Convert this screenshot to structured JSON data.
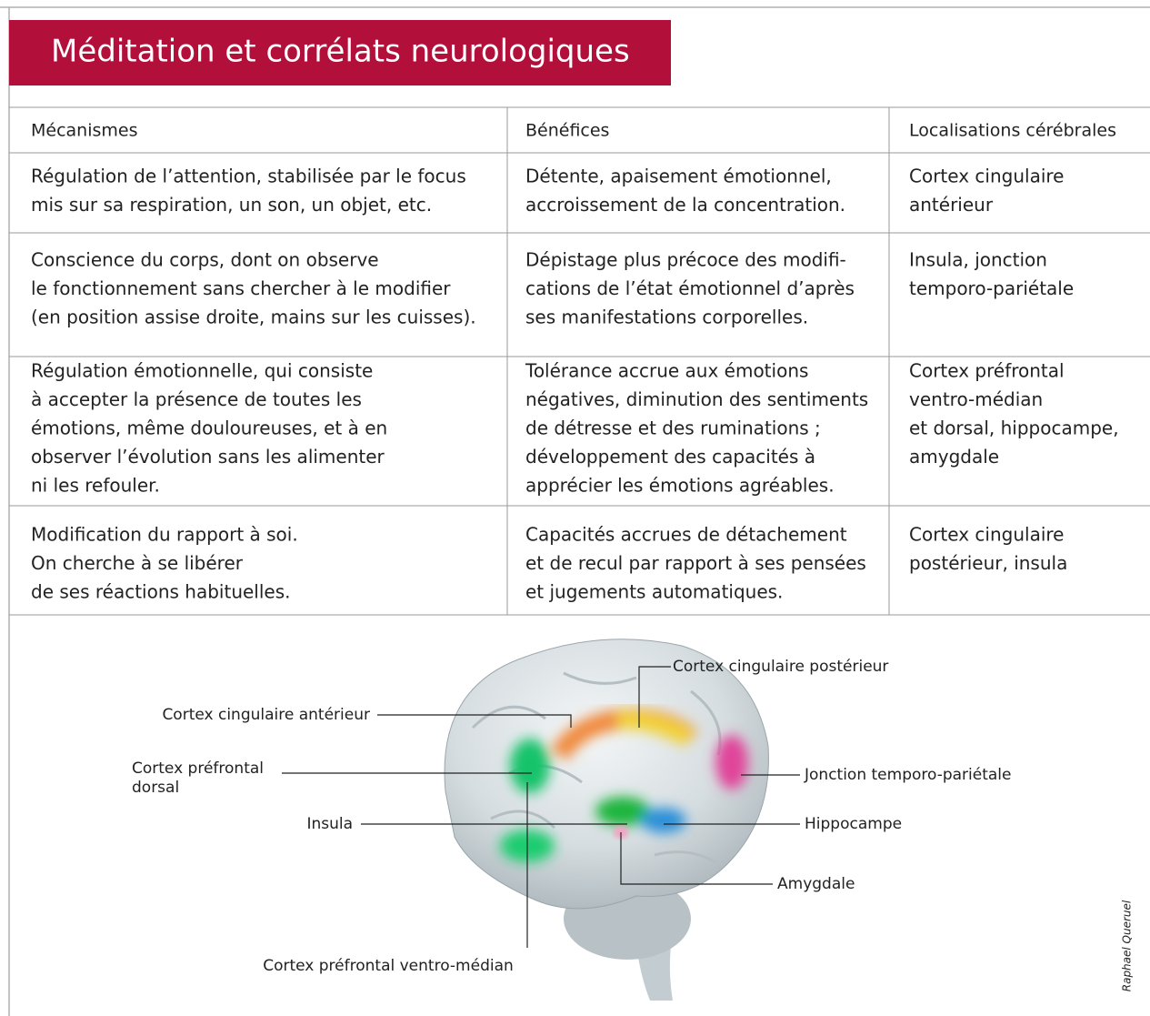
{
  "title": "Méditation et corrélats neurologiques",
  "table": {
    "headers": [
      "Mécanismes",
      "Bénéfices",
      "Localisations cérébrales"
    ],
    "rows": [
      [
        [
          "Régulation de l’attention, stabilisée par le focus",
          "mis sur sa respiration, un son, un objet, etc."
        ],
        [
          "Détente, apaisement émotionnel,",
          "accroissement de la concentration."
        ],
        [
          "Cortex cingulaire",
          "antérieur"
        ]
      ],
      [
        [
          "Conscience du corps, dont on observe",
          "le fonctionnement sans chercher à le modifier",
          "(en position assise droite, mains sur les cuisses)."
        ],
        [
          "Dépistage plus précoce des modifi-",
          "cations de l’état émotionnel d’après",
          "ses manifestations corporelles."
        ],
        [
          "Insula, jonction",
          "temporo-pariétale"
        ]
      ],
      [
        [
          "Régulation émotionnelle, qui consiste",
          "à accepter la présence de toutes les",
          "émotions, même douloureuses, et à en",
          "observer l’évolution sans les alimenter",
          "ni les refouler."
        ],
        [
          "Tolérance accrue aux émotions",
          "négatives, diminution des sentiments",
          "de détresse et des ruminations ;",
          "développement des capacités à",
          "apprécier les émotions agréables."
        ],
        [
          "Cortex préfrontal",
          "ventro-médian",
          "et dorsal, hippocampe,",
          " amygdale"
        ]
      ],
      [
        [
          "Modification du rapport à soi.",
          "On cherche à se libérer",
          "de ses réactions habituelles."
        ],
        [
          "Capacités accrues de détachement",
          "et de recul par rapport à ses pensées",
          "et jugements automatiques."
        ],
        [
          "Cortex cingulaire",
          "postérieur, insula"
        ]
      ]
    ]
  },
  "diagram": {
    "labels": [
      [
        "Cortex cingulaire postérieur"
      ],
      [
        "Cortex cingulaire antérieur"
      ],
      [
        "Cortex préfrontal",
        "dorsal"
      ],
      [
        "Jonction temporo-pariétale"
      ],
      [
        "Insula"
      ],
      [
        "Hippocampe"
      ],
      [
        "Amygdale"
      ],
      [
        "Cortex préfrontal ventro-médian"
      ]
    ]
  },
  "credit": "Raphael Queruel"
}
